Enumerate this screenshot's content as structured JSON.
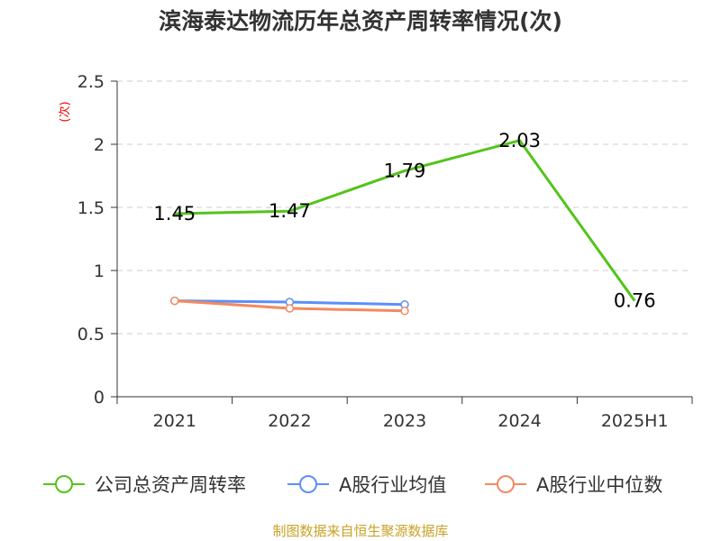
{
  "chart_data": {
    "type": "line",
    "title": "滨海泰达物流历年总资产周转率情况(次)",
    "ylabel": "(次)",
    "xlabel": "",
    "categories": [
      "2021",
      "2022",
      "2023",
      "2024",
      "2025H1"
    ],
    "ylim": [
      0,
      2.5
    ],
    "yticks": [
      "0",
      "0.5",
      "1",
      "1.5",
      "2",
      "2.5"
    ],
    "grid": true,
    "legend_position": "bottom",
    "series": [
      {
        "name": "公司总资产周转率",
        "values": [
          1.45,
          1.47,
          1.79,
          2.03,
          0.76
        ],
        "color": "#52c41a",
        "data_labels": [
          "1.45",
          "1.47",
          "1.79",
          "2.03",
          "0.76"
        ]
      },
      {
        "name": "A股行业均值",
        "values": [
          0.76,
          0.75,
          0.73,
          null,
          null
        ],
        "color": "#5b8ff9"
      },
      {
        "name": "A股行业中位数",
        "values": [
          0.76,
          0.7,
          0.68,
          null,
          null
        ],
        "color": "#f4895f"
      }
    ]
  },
  "source_note": "制图数据来自恒生聚源数据库",
  "colors": {
    "title": "#333333",
    "axis": "#333333",
    "grid": "#cccccc",
    "ylabel": "#ff0000",
    "source": "#c9a227"
  }
}
